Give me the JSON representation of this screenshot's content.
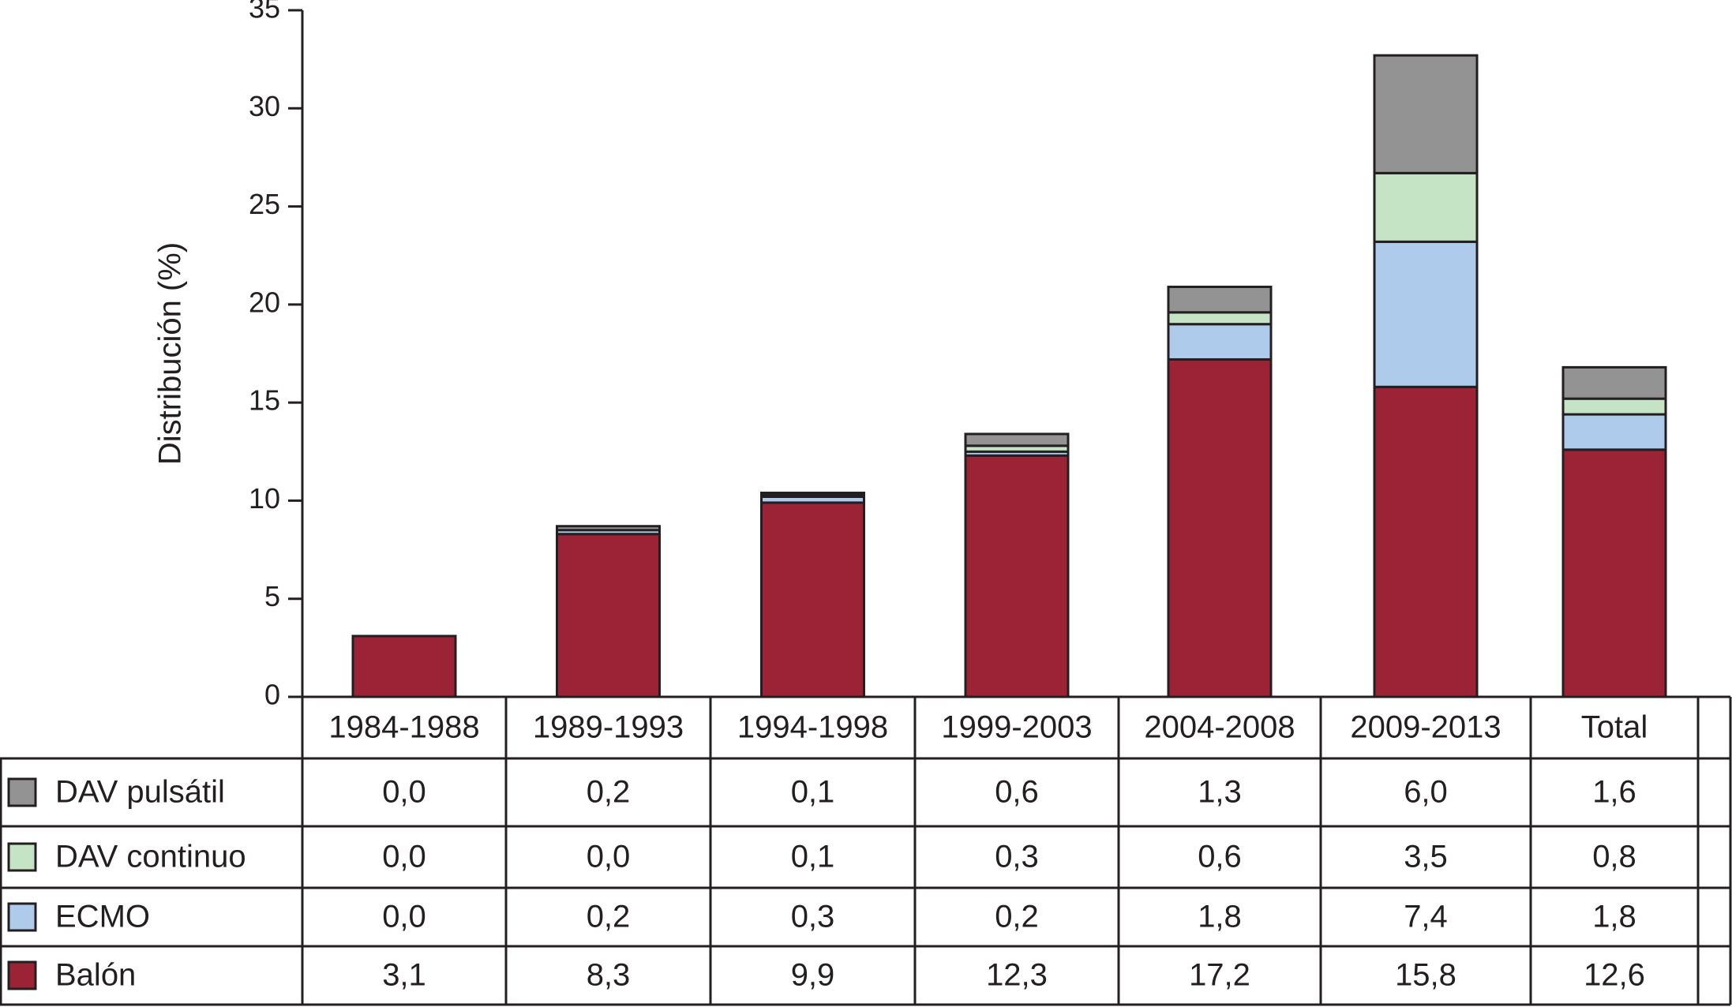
{
  "chart_data": {
    "type": "stacked_bar",
    "y_label": "Distribución (%)",
    "categories": [
      "1984-1988",
      "1989-1993",
      "1994-1998",
      "1999-2003",
      "2004-2008",
      "2009-2013",
      "Total"
    ],
    "series": [
      {
        "name": "Balón",
        "color": "#9b2335",
        "values": [
          3.1,
          8.3,
          9.9,
          12.3,
          17.2,
          15.8,
          12.6
        ],
        "value_labels": [
          "3,1",
          "8,3",
          "9,9",
          "12,3",
          "17,2",
          "15,8",
          "12,6"
        ]
      },
      {
        "name": "ECMO",
        "color": "#aecbeb",
        "values": [
          0.0,
          0.2,
          0.3,
          0.2,
          1.8,
          7.4,
          1.8
        ],
        "value_labels": [
          "0,0",
          "0,2",
          "0,3",
          "0,2",
          "1,8",
          "7,4",
          "1,8"
        ]
      },
      {
        "name": "DAV continuo",
        "color": "#c5e3c5",
        "values": [
          0.0,
          0.0,
          0.1,
          0.3,
          0.6,
          3.5,
          0.8
        ],
        "value_labels": [
          "0,0",
          "0,0",
          "0,1",
          "0,3",
          "0,6",
          "3,5",
          "0,8"
        ]
      },
      {
        "name": "DAV pulsátil",
        "color": "#939393",
        "values": [
          0.0,
          0.2,
          0.1,
          0.6,
          1.3,
          6.0,
          1.6
        ],
        "value_labels": [
          "0,0",
          "0,2",
          "0,1",
          "0,6",
          "1,3",
          "6,0",
          "1,6"
        ]
      }
    ],
    "ylim": [
      0,
      35
    ],
    "yticks": [
      0,
      5,
      10,
      15,
      20,
      25,
      30,
      35
    ]
  }
}
